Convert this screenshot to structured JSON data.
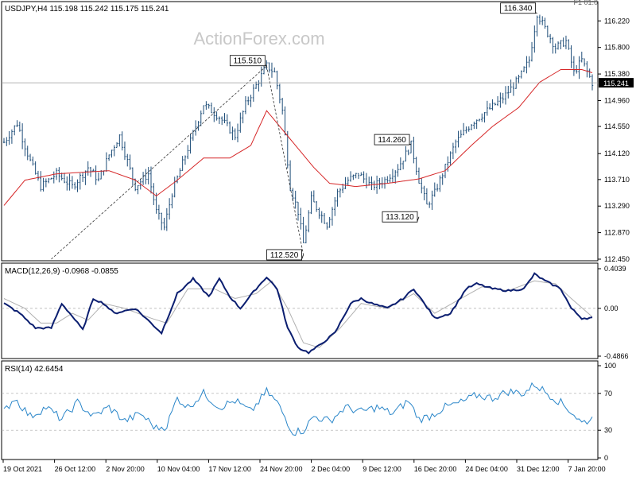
{
  "watermark": "ActionForex.com",
  "corner_label": "F1 01:0",
  "colors": {
    "price": "#1f4e79",
    "ma": "#d62728",
    "macd": "#0b1e70",
    "signal": "#b0b0b0",
    "rsi": "#2a86c9",
    "price_tag_bg": "#000000"
  },
  "chart_data": [
    {
      "type": "candlestick",
      "panel": "price",
      "symbol_header": "USDJPY,H4  115.198 115.242 115.175 115.241",
      "last_price": "115.241",
      "ylim": [
        112.45,
        116.45
      ],
      "ticks": [
        {
          "value": 116.22,
          "label": "116.220"
        },
        {
          "value": 115.8,
          "label": "115.800"
        },
        {
          "value": 115.38,
          "label": "115.380"
        },
        {
          "value": 114.96,
          "label": "114.960"
        },
        {
          "value": 114.55,
          "label": "114.550"
        },
        {
          "value": 114.12,
          "label": "114.120"
        },
        {
          "value": 113.71,
          "label": "113.710"
        },
        {
          "value": 113.29,
          "label": "113.290"
        },
        {
          "value": 112.87,
          "label": "112.870"
        },
        {
          "value": 112.45,
          "label": "112.450"
        }
      ],
      "price_anchors": [
        [
          0,
          114.3
        ],
        [
          5,
          114.6
        ],
        [
          10,
          114.0
        ],
        [
          14,
          113.6
        ],
        [
          20,
          113.8
        ],
        [
          26,
          113.6
        ],
        [
          32,
          113.9
        ],
        [
          36,
          113.7
        ],
        [
          40,
          114.1
        ],
        [
          44,
          114.4
        ],
        [
          50,
          113.6
        ],
        [
          55,
          113.8
        ],
        [
          58,
          113.2
        ],
        [
          61,
          112.95
        ],
        [
          64,
          113.5
        ],
        [
          70,
          114.2
        ],
        [
          76,
          114.9
        ],
        [
          82,
          114.7
        ],
        [
          88,
          114.4
        ],
        [
          92,
          114.9
        ],
        [
          96,
          115.2
        ],
        [
          100,
          115.51
        ],
        [
          103,
          115.4
        ],
        [
          106,
          114.8
        ],
        [
          109,
          113.6
        ],
        [
          112,
          113.2
        ],
        [
          114,
          112.7
        ],
        [
          117,
          113.4
        ],
        [
          120,
          113.2
        ],
        [
          123,
          113.0
        ],
        [
          127,
          113.5
        ],
        [
          131,
          113.7
        ],
        [
          135,
          113.8
        ],
        [
          140,
          113.6
        ],
        [
          145,
          113.7
        ],
        [
          150,
          113.9
        ],
        [
          155,
          114.26
        ],
        [
          158,
          113.7
        ],
        [
          161,
          113.3
        ],
        [
          164,
          113.5
        ],
        [
          168,
          113.9
        ],
        [
          172,
          114.3
        ],
        [
          178,
          114.6
        ],
        [
          184,
          114.8
        ],
        [
          190,
          115.0
        ],
        [
          196,
          115.3
        ],
        [
          200,
          115.6
        ],
        [
          203,
          116.34
        ],
        [
          206,
          116.1
        ],
        [
          210,
          115.8
        ],
        [
          214,
          115.9
        ],
        [
          217,
          115.4
        ],
        [
          220,
          115.6
        ],
        [
          224,
          115.241
        ]
      ],
      "ma_anchors": [
        [
          0,
          113.3
        ],
        [
          8,
          113.7
        ],
        [
          20,
          113.8
        ],
        [
          40,
          113.85
        ],
        [
          50,
          113.7
        ],
        [
          58,
          113.45
        ],
        [
          66,
          113.7
        ],
        [
          76,
          114.05
        ],
        [
          86,
          114.05
        ],
        [
          94,
          114.25
        ],
        [
          100,
          114.8
        ],
        [
          104,
          114.6
        ],
        [
          110,
          114.3
        ],
        [
          118,
          113.9
        ],
        [
          124,
          113.65
        ],
        [
          134,
          113.6
        ],
        [
          146,
          113.65
        ],
        [
          158,
          113.72
        ],
        [
          168,
          113.85
        ],
        [
          178,
          114.25
        ],
        [
          186,
          114.55
        ],
        [
          196,
          114.85
        ],
        [
          204,
          115.25
        ],
        [
          212,
          115.45
        ],
        [
          220,
          115.45
        ],
        [
          224,
          115.4
        ]
      ],
      "annotations": [
        {
          "label": "115.510",
          "bar": 100,
          "value": 115.51
        },
        {
          "label": "112.520",
          "bar": 114,
          "value": 112.52
        },
        {
          "label": "114.260",
          "bar": 155,
          "value": 114.26
        },
        {
          "label": "113.120",
          "bar": 158,
          "value": 113.12
        },
        {
          "label": "116.340",
          "bar": 203,
          "value": 116.34
        }
      ],
      "trendlines": [
        {
          "from": [
            18,
            112.45
          ],
          "to": [
            100,
            115.51
          ]
        },
        {
          "from": [
            100,
            115.51
          ],
          "to": [
            114,
            112.52
          ]
        }
      ],
      "x_labels": [
        "19 Oct 2021",
        "26 Oct 12:00",
        "2 Nov 20:00",
        "10 Nov 04:00",
        "17 Nov 12:00",
        "24 Nov 20:00",
        "2 Dec 04:00",
        "9 Dec 12:00",
        "16 Dec 20:00",
        "24 Dec 04:00",
        "31 Dec 12:00",
        "7 Jan 20:00"
      ],
      "bars": 225
    },
    {
      "type": "line",
      "panel": "macd",
      "title": "MACD(12,26,9) -0.0968 -0.0855",
      "ylim": [
        -0.4866,
        0.4039
      ],
      "ticks": [
        {
          "value": 0.4039,
          "label": "0.4039"
        },
        {
          "value": 0.0,
          "label": "0.00"
        },
        {
          "value": -0.4866,
          "label": "-0.4866"
        }
      ],
      "macd_anchors": [
        [
          0,
          0.05
        ],
        [
          6,
          -0.05
        ],
        [
          12,
          -0.2
        ],
        [
          18,
          -0.2
        ],
        [
          22,
          0.05
        ],
        [
          26,
          -0.08
        ],
        [
          30,
          -0.22
        ],
        [
          34,
          0.1
        ],
        [
          38,
          0.05
        ],
        [
          42,
          -0.05
        ],
        [
          50,
          0.0
        ],
        [
          56,
          -0.15
        ],
        [
          60,
          -0.25
        ],
        [
          66,
          0.15
        ],
        [
          72,
          0.3
        ],
        [
          78,
          0.12
        ],
        [
          82,
          0.3
        ],
        [
          86,
          0.12
        ],
        [
          90,
          0.0
        ],
        [
          96,
          0.2
        ],
        [
          100,
          0.32
        ],
        [
          104,
          0.2
        ],
        [
          108,
          -0.2
        ],
        [
          112,
          -0.4
        ],
        [
          116,
          -0.45
        ],
        [
          120,
          -0.38
        ],
        [
          126,
          -0.25
        ],
        [
          132,
          0.05
        ],
        [
          136,
          0.1
        ],
        [
          140,
          0.05
        ],
        [
          146,
          0.0
        ],
        [
          152,
          0.1
        ],
        [
          156,
          0.2
        ],
        [
          160,
          0.05
        ],
        [
          164,
          -0.1
        ],
        [
          170,
          -0.05
        ],
        [
          176,
          0.2
        ],
        [
          180,
          0.25
        ],
        [
          186,
          0.2
        ],
        [
          192,
          0.18
        ],
        [
          198,
          0.2
        ],
        [
          202,
          0.35
        ],
        [
          206,
          0.28
        ],
        [
          212,
          0.2
        ],
        [
          216,
          0.0
        ],
        [
          220,
          -0.1
        ],
        [
          224,
          -0.0968
        ]
      ],
      "signal_anchors": [
        [
          0,
          0.1
        ],
        [
          8,
          0.0
        ],
        [
          14,
          -0.15
        ],
        [
          20,
          -0.15
        ],
        [
          26,
          -0.05
        ],
        [
          32,
          -0.12
        ],
        [
          38,
          0.05
        ],
        [
          46,
          0.0
        ],
        [
          56,
          -0.1
        ],
        [
          62,
          -0.15
        ],
        [
          70,
          0.2
        ],
        [
          80,
          0.2
        ],
        [
          88,
          0.1
        ],
        [
          96,
          0.15
        ],
        [
          102,
          0.28
        ],
        [
          108,
          0.0
        ],
        [
          114,
          -0.35
        ],
        [
          120,
          -0.4
        ],
        [
          128,
          -0.2
        ],
        [
          136,
          0.05
        ],
        [
          146,
          0.0
        ],
        [
          156,
          0.15
        ],
        [
          164,
          -0.05
        ],
        [
          174,
          0.1
        ],
        [
          182,
          0.22
        ],
        [
          192,
          0.18
        ],
        [
          202,
          0.28
        ],
        [
          210,
          0.25
        ],
        [
          216,
          0.1
        ],
        [
          224,
          -0.0855
        ]
      ]
    },
    {
      "type": "line",
      "panel": "rsi",
      "title": "RSI(14) 42.6454",
      "ylim": [
        0,
        100
      ],
      "ticks": [
        {
          "value": 100,
          "label": "100"
        },
        {
          "value": 70,
          "label": "70"
        },
        {
          "value": 30,
          "label": "30"
        },
        {
          "value": 0,
          "label": "0"
        }
      ],
      "levels": [
        70,
        30
      ],
      "rsi_anchors": [
        [
          0,
          50
        ],
        [
          4,
          65
        ],
        [
          10,
          45
        ],
        [
          16,
          55
        ],
        [
          22,
          42
        ],
        [
          28,
          60
        ],
        [
          34,
          45
        ],
        [
          40,
          55
        ],
        [
          46,
          40
        ],
        [
          52,
          48
        ],
        [
          58,
          32
        ],
        [
          62,
          35
        ],
        [
          66,
          65
        ],
        [
          70,
          55
        ],
        [
          76,
          70
        ],
        [
          82,
          55
        ],
        [
          88,
          62
        ],
        [
          94,
          50
        ],
        [
          100,
          72
        ],
        [
          104,
          60
        ],
        [
          110,
          28
        ],
        [
          114,
          30
        ],
        [
          118,
          45
        ],
        [
          124,
          40
        ],
        [
          130,
          55
        ],
        [
          136,
          50
        ],
        [
          142,
          55
        ],
        [
          148,
          48
        ],
        [
          154,
          62
        ],
        [
          158,
          42
        ],
        [
          162,
          45
        ],
        [
          168,
          55
        ],
        [
          174,
          60
        ],
        [
          180,
          68
        ],
        [
          186,
          65
        ],
        [
          192,
          72
        ],
        [
          198,
          70
        ],
        [
          202,
          80
        ],
        [
          206,
          72
        ],
        [
          212,
          60
        ],
        [
          216,
          50
        ],
        [
          220,
          38
        ],
        [
          224,
          42.6454
        ]
      ]
    }
  ]
}
